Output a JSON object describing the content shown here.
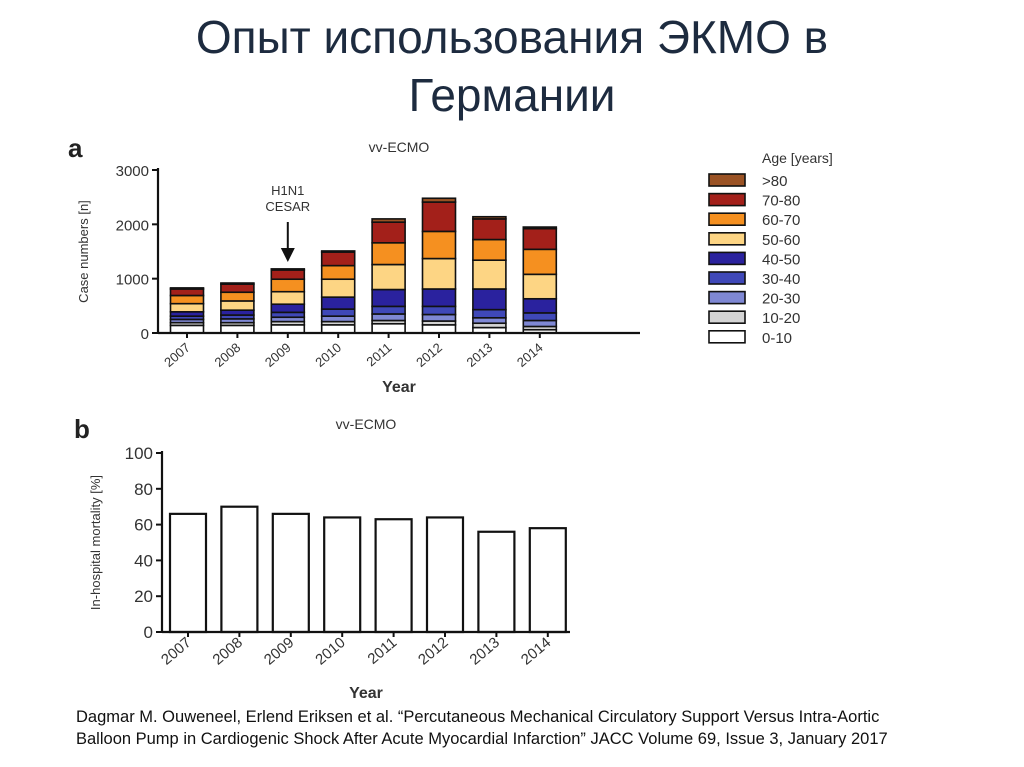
{
  "slide": {
    "title_line1": "Опыт использования ЭКМО в",
    "title_line2": "Германии",
    "citation_line1": "Dagmar M. Ouweneel, Erlend Eriksen et al. “Percutaneous Mechanical Circulatory Support Versus Intra-Aortic",
    "citation_line2": "Balloon Pump in Cardiogenic Shock After Acute Myocardial Infarction” JACC Volume 69, Issue 3, January 2017"
  },
  "chart_data": [
    {
      "type": "bar",
      "stacked": true,
      "panel_label": "a",
      "title": "vv-ECMO",
      "xlabel": "Year",
      "ylabel": "Case numbers [n]",
      "ylim": [
        0,
        3000
      ],
      "yticks": [
        0,
        1000,
        2000,
        3000
      ],
      "categories": [
        "2007",
        "2008",
        "2009",
        "2010",
        "2011",
        "2012",
        "2013",
        "2014"
      ],
      "annotation": {
        "text_line1": "H1N1",
        "text_line2": "CESAR",
        "category": "2009"
      },
      "legend_title": "Age [years]",
      "legend_position": "right",
      "series": [
        {
          "name": "0-10",
          "color": "#ffffff",
          "values": [
            140,
            140,
            150,
            150,
            170,
            150,
            100,
            60
          ]
        },
        {
          "name": "10-20",
          "color": "#d4d4d4",
          "values": [
            50,
            50,
            60,
            60,
            60,
            70,
            80,
            60
          ]
        },
        {
          "name": "20-30",
          "color": "#7f88d4",
          "values": [
            60,
            70,
            80,
            100,
            120,
            120,
            100,
            110
          ]
        },
        {
          "name": "30-40",
          "color": "#3f48b8",
          "values": [
            60,
            70,
            90,
            130,
            140,
            150,
            150,
            140
          ]
        },
        {
          "name": "40-50",
          "color": "#2a229e",
          "values": [
            80,
            90,
            150,
            220,
            310,
            320,
            380,
            260
          ]
        },
        {
          "name": "50-60",
          "color": "#fdd584",
          "values": [
            150,
            170,
            230,
            330,
            460,
            560,
            530,
            450
          ]
        },
        {
          "name": "60-70",
          "color": "#f59020",
          "values": [
            150,
            160,
            230,
            250,
            400,
            500,
            380,
            460
          ]
        },
        {
          "name": "70-80",
          "color": "#a3201a",
          "values": [
            120,
            150,
            170,
            250,
            380,
            540,
            380,
            380
          ]
        },
        {
          "name": ">80",
          "color": "#9a5224",
          "values": [
            20,
            20,
            20,
            20,
            60,
            70,
            40,
            30
          ]
        }
      ]
    },
    {
      "type": "bar",
      "panel_label": "b",
      "title": "vv-ECMO",
      "xlabel": "Year",
      "ylabel": "In-hospital mortality [%]",
      "ylim": [
        0,
        100
      ],
      "yticks": [
        0,
        20,
        40,
        60,
        80,
        100
      ],
      "categories": [
        "2007",
        "2008",
        "2009",
        "2010",
        "2011",
        "2012",
        "2013",
        "2014"
      ],
      "values": [
        66,
        70,
        66,
        64,
        63,
        64,
        56,
        58
      ],
      "bar_color": "#ffffff"
    }
  ]
}
